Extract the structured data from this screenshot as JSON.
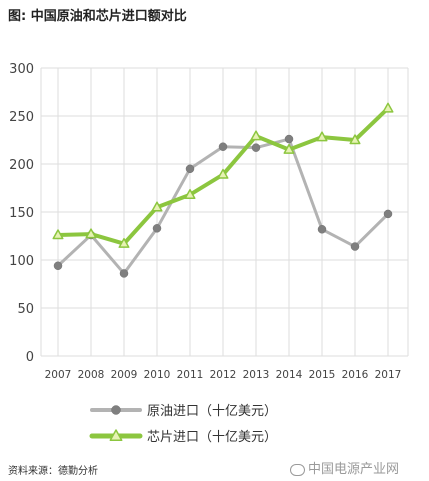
{
  "title": "图: 中国原油和芯片进口额对比",
  "source_note": "资料来源：德勤分析",
  "watermark": "中国电源产业网",
  "colors": {
    "oil": "#b3b3b3",
    "oil_marker": "#7f7f7f",
    "chip": "#8cc63f",
    "chip_marker_fill": "#e6f2b3",
    "grid": "#dddddd"
  },
  "chart_data": {
    "type": "line",
    "title": "图: 中国原油和芯片进口额对比",
    "x": [
      "2007",
      "2008",
      "2009",
      "2010",
      "2011",
      "2012",
      "2013",
      "2014",
      "2015",
      "2016",
      "2017"
    ],
    "ylim": [
      0,
      300
    ],
    "yticks": [
      0,
      50,
      100,
      150,
      200,
      250,
      300
    ],
    "grid": true,
    "legend_position": "bottom",
    "series": [
      {
        "name": "原油进口（十亿美元）",
        "values": [
          94,
          126,
          86,
          133,
          195,
          218,
          217,
          226,
          132,
          114,
          148
        ],
        "marker": "circle"
      },
      {
        "name": "芯片进口（十亿美元）",
        "values": [
          126,
          127,
          117,
          155,
          168,
          189,
          229,
          215,
          228,
          225,
          258
        ],
        "marker": "triangle"
      }
    ]
  }
}
